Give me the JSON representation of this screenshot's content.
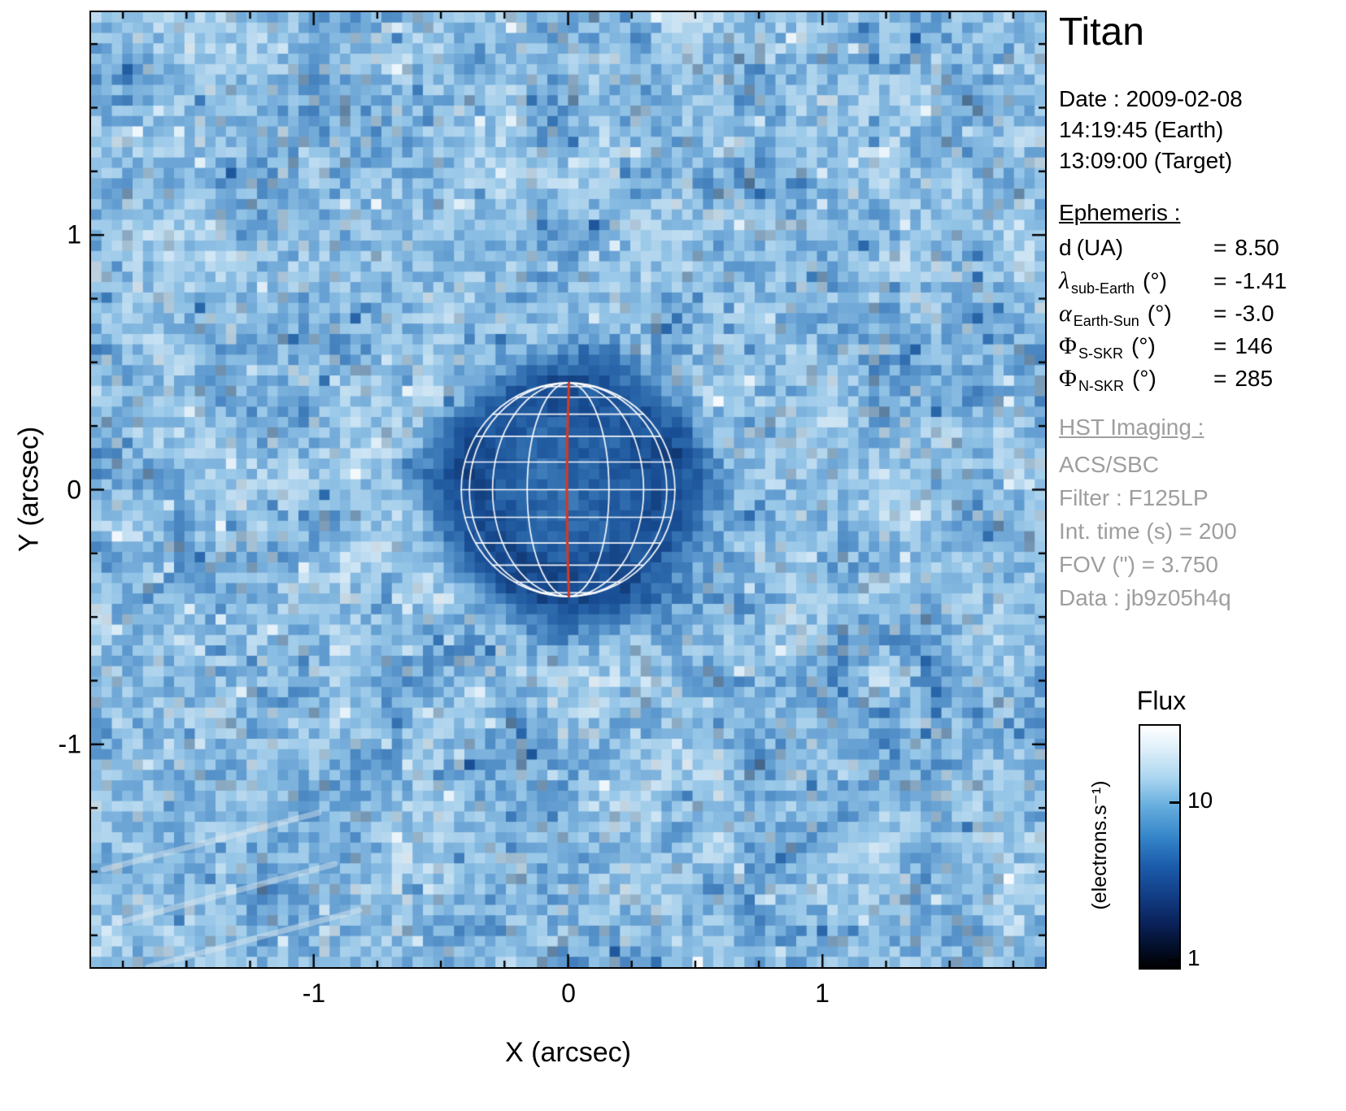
{
  "panel": {
    "title": "Titan",
    "date": [
      "Date : 2009-02-08",
      "14:19:45 (Earth)",
      "13:09:00 (Target)"
    ],
    "ephemeris": {
      "heading": "Ephemeris :",
      "rows": [
        {
          "sym": "d",
          "sub": "",
          "unit": "(UA)",
          "eq": "=",
          "val": "8.50"
        },
        {
          "sym": "λ",
          "sub": "sub-Earth",
          "unit": "(°)",
          "eq": "=",
          "val": "-1.41"
        },
        {
          "sym": "α",
          "sub": "Earth-Sun",
          "unit": "(°)",
          "eq": "=",
          "val": "-3.0"
        },
        {
          "sym": "Φ",
          "sub": "S-SKR",
          "unit": "(°)",
          "eq": "=",
          "val": "146"
        },
        {
          "sym": "Φ",
          "sub": "N-SKR",
          "unit": "(°)",
          "eq": "=",
          "val": "285"
        }
      ]
    },
    "hst": {
      "heading": "HST Imaging :",
      "lines": [
        "ACS/SBC",
        "Filter : F125LP",
        "Int. time (s) = 200",
        "FOV (\") = 3.750",
        "Data : jb9z05h4q"
      ]
    }
  },
  "axes": {
    "xlabel": "X (arcsec)",
    "ylabel": "Y (arcsec)",
    "xticks": [
      "-1",
      "0",
      "1"
    ],
    "yticks": [
      "1",
      "0",
      "-1"
    ]
  },
  "colorbar": {
    "title": "Flux",
    "unit": "(electrons.s⁻¹)",
    "tick_top": "10",
    "tick_bottom": "1"
  },
  "chart_data": {
    "type": "heatmap",
    "title": "Titan",
    "xlabel": "X (arcsec)",
    "ylabel": "Y (arcsec)",
    "xlim": [
      -1.875,
      1.875
    ],
    "ylim": [
      -1.875,
      1.875
    ],
    "xticks": [
      -1,
      0,
      1
    ],
    "yticks": [
      -1,
      0,
      1
    ],
    "fov_arcsec": 3.75,
    "colorbar": {
      "label": "Flux",
      "unit": "electrons.s-1",
      "scale": "log",
      "min": 1,
      "max": 30,
      "ticks": [
        1,
        10
      ]
    },
    "background": {
      "mean_flux": 9,
      "description": "speckled sky noise, light blue, flux ~6-15 electrons/s"
    },
    "disk": {
      "center_x": 0.0,
      "center_y": 0.0,
      "radius_arcsec": 0.42,
      "mean_flux": 3,
      "limb_flux": 2,
      "description": "Titan disk darker than background with diffuse dark-blue halo"
    },
    "overlay": {
      "grid_color": "#ffffff",
      "meridian_color": "#cf3a28",
      "latitude_step_deg": 15,
      "longitude_step_deg": 22.5,
      "sub_earth_latitude_deg": -1.41
    }
  }
}
